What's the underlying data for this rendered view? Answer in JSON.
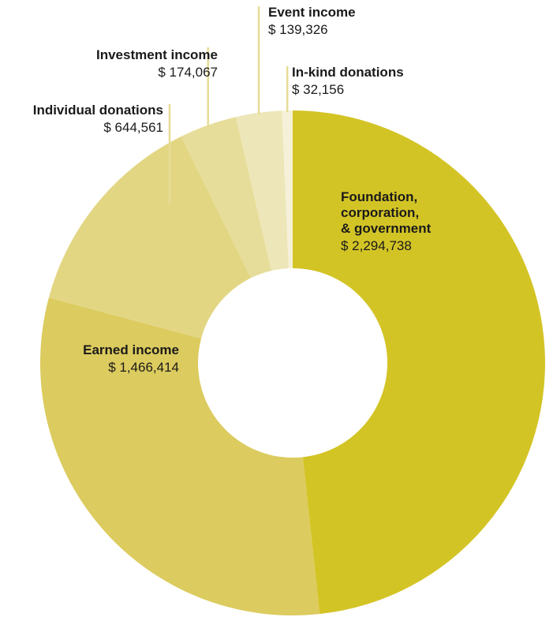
{
  "chart_data": {
    "type": "pie",
    "donut": true,
    "currency_prefix": "$",
    "slices": [
      {
        "label": "Foundation, corporation, & government",
        "label_lines": [
          "Foundation,",
          "corporation,",
          "& government"
        ],
        "value": 2294738,
        "value_text": "$ 2,294,738",
        "color": "#d3c426"
      },
      {
        "label": "Earned income",
        "label_lines": [
          "Earned income"
        ],
        "value": 1466414,
        "value_text": "$ 1,466,414",
        "color": "#dccb5e"
      },
      {
        "label": "Individual donations",
        "label_lines": [
          "Individual donations"
        ],
        "value": 644561,
        "value_text": "$ 644,561",
        "color": "#e3d683"
      },
      {
        "label": "Investment income",
        "label_lines": [
          "Investment income"
        ],
        "value": 174067,
        "value_text": "$ 174,067",
        "color": "#e7dd9a"
      },
      {
        "label": "Event income",
        "label_lines": [
          "Event income"
        ],
        "value": 139326,
        "value_text": "$ 139,326",
        "color": "#ede6b8"
      },
      {
        "label": "In-kind donations",
        "label_lines": [
          "In-kind donations"
        ],
        "value": 32156,
        "value_text": "$ 32,156",
        "color": "#f5f1d9"
      }
    ],
    "leader_color": "#e6dc95"
  }
}
